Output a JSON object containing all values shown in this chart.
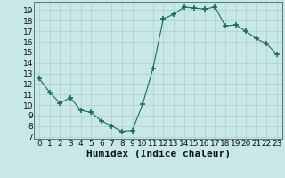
{
  "x": [
    0,
    1,
    2,
    3,
    4,
    5,
    6,
    7,
    8,
    9,
    10,
    11,
    12,
    13,
    14,
    15,
    16,
    17,
    18,
    19,
    20,
    21,
    22,
    23
  ],
  "y": [
    12.5,
    11.2,
    10.2,
    10.7,
    9.5,
    9.3,
    8.5,
    8.0,
    7.5,
    7.6,
    10.1,
    13.5,
    18.2,
    18.6,
    19.3,
    19.2,
    19.1,
    19.3,
    17.5,
    17.6,
    17.0,
    16.3,
    15.8,
    14.8
  ],
  "line_color": "#1a6b5e",
  "marker": "+",
  "marker_size": 4,
  "bg_color": "#c8e8e8",
  "grid_color": "#b0cccc",
  "xlabel": "Humidex (Indice chaleur)",
  "xlabel_fontsize": 8,
  "ylabel_ticks": [
    7,
    8,
    9,
    10,
    11,
    12,
    13,
    14,
    15,
    16,
    17,
    18,
    19
  ],
  "ylim": [
    6.8,
    19.8
  ],
  "xlim": [
    -0.5,
    23.5
  ],
  "xticks": [
    0,
    1,
    2,
    3,
    4,
    5,
    6,
    7,
    8,
    9,
    10,
    11,
    12,
    13,
    14,
    15,
    16,
    17,
    18,
    19,
    20,
    21,
    22,
    23
  ],
  "tick_fontsize": 6.5
}
